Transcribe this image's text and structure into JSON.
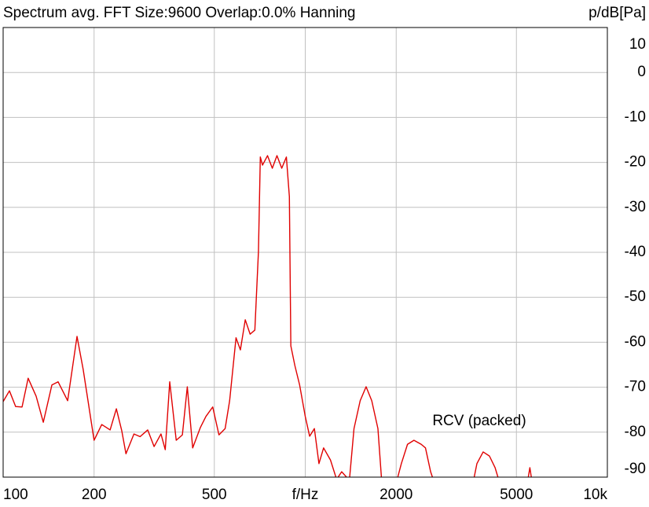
{
  "chart_data": {
    "type": "line",
    "title": "Spectrum avg.  FFT Size:9600  Overlap:0.0%  Hanning",
    "y_label": "p/dB[Pa]",
    "annotation": "RCV (packed)",
    "xlog": true,
    "grid": true,
    "color": "#e00000",
    "xlim": [
      100,
      10000
    ],
    "xticks": [
      100,
      200,
      500,
      {
        "value": 1000,
        "label": "f/Hz"
      },
      2000,
      5000,
      {
        "value": 10000,
        "label": "10k"
      }
    ],
    "ylim": [
      -90,
      10
    ],
    "yticks": [
      10,
      0,
      -10,
      -20,
      -30,
      -40,
      -50,
      -60,
      -70,
      -80,
      -90
    ],
    "x": [
      100,
      104.9,
      110,
      115.5,
      121,
      128.6,
      135.8,
      145,
      152,
      163.5,
      175.6,
      184,
      200,
      212,
      226,
      237,
      247,
      255,
      271,
      284,
      301,
      316,
      333,
      344,
      356,
      374,
      392,
      407,
      424,
      450,
      469,
      494,
      518,
      543,
      562,
      590,
      610,
      633,
      657,
      681,
      700,
      710,
      722,
      750,
      778,
      806,
      836,
      866,
      886,
      896,
      924,
      958,
      1000,
      1034,
      1072,
      1110,
      1150,
      1212,
      1270,
      1320,
      1400,
      1450,
      1520,
      1590,
      1660,
      1740,
      1800,
      1970,
      2080,
      2180,
      2290,
      2420,
      2500,
      2600,
      2730,
      3550,
      3700,
      3880,
      4070,
      4250,
      4480,
      5380,
      5540,
      5690
    ],
    "values": [
      -73.2,
      -70.8,
      -74.3,
      -74.4,
      -68,
      -72,
      -77.8,
      -69.5,
      -68.8,
      -73,
      -58.7,
      -66,
      -81.8,
      -78.3,
      -79.5,
      -74.8,
      -79.7,
      -84.8,
      -80.4,
      -81,
      -79.5,
      -83.2,
      -80.4,
      -83.9,
      -68.8,
      -81.8,
      -80.6,
      -69.9,
      -83.5,
      -78.9,
      -76.5,
      -74.4,
      -80.6,
      -79.2,
      -73,
      -59,
      -61.7,
      -55,
      -58.2,
      -57.3,
      -39.8,
      -18.8,
      -20.6,
      -18.5,
      -21.3,
      -18.5,
      -21.3,
      -18.8,
      -27.6,
      -60.8,
      -65.2,
      -69.5,
      -76.5,
      -80.9,
      -79.2,
      -87,
      -83.5,
      -86.2,
      -90.5,
      -88.8,
      -90.7,
      -79.2,
      -73,
      -69.9,
      -73,
      -79.2,
      -93,
      -93,
      -87,
      -82.7,
      -81.8,
      -82.7,
      -83.5,
      -88.8,
      -93,
      -93,
      -87,
      -84.4,
      -85.3,
      -87.9,
      -93,
      -93,
      -87.9,
      -93
    ]
  }
}
